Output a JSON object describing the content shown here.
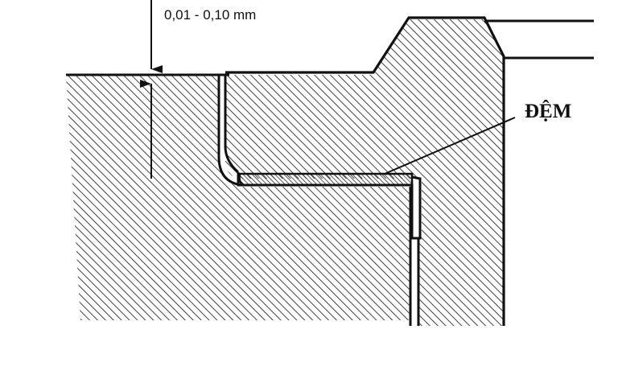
{
  "diagram": {
    "dimension_label": "0,01 - 0,10 mm",
    "gasket_label": "ĐỆM",
    "colors": {
      "ink": "#111111",
      "paper": "#ffffff"
    }
  }
}
